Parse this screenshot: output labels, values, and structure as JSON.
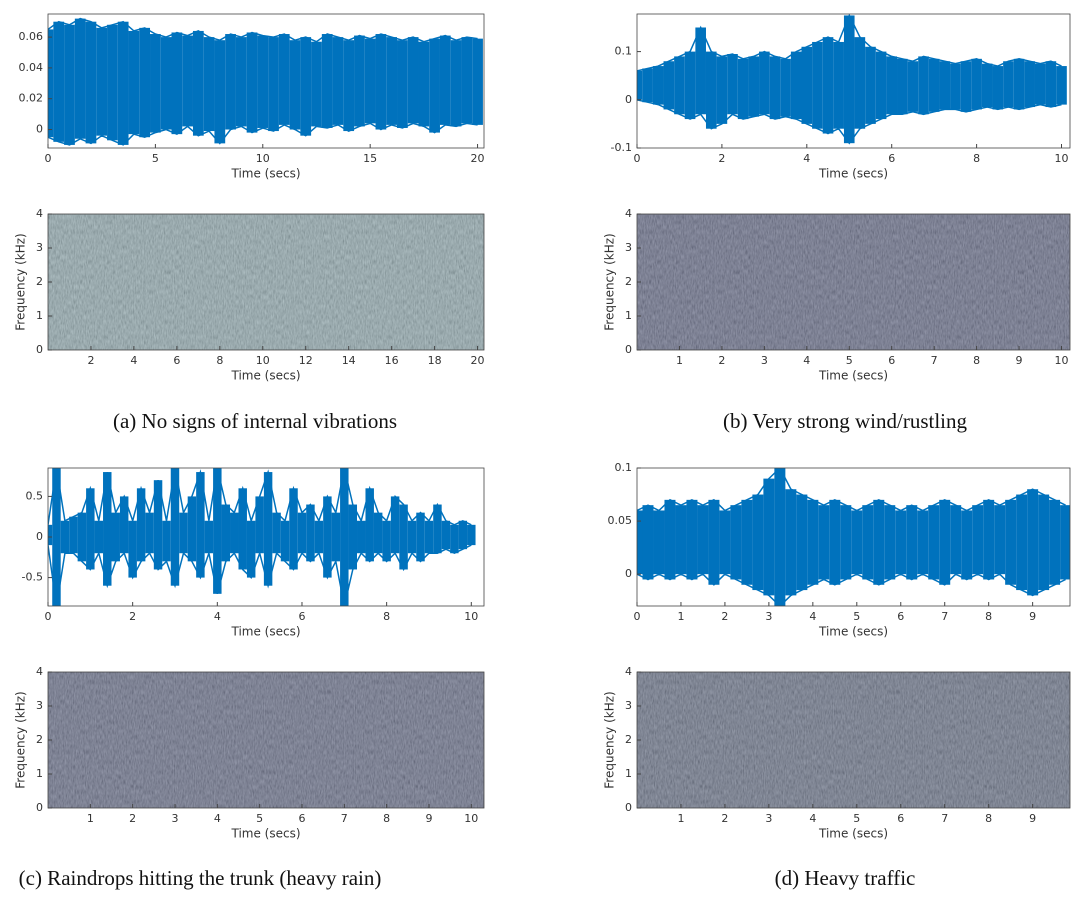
{
  "chart_data": [
    {
      "type": "waveform",
      "color": "#0072bd",
      "xlabel": "Time (secs)",
      "xlim": [
        0,
        20.3
      ],
      "ylim": [
        -0.012,
        0.075
      ],
      "xticks": [
        0,
        5,
        10,
        15,
        20
      ],
      "yticks": [
        0,
        0.02,
        0.04,
        0.06
      ],
      "x": [
        0,
        0.5,
        1,
        1.5,
        2,
        2.5,
        3,
        3.5,
        4,
        4.5,
        5,
        5.5,
        6,
        6.5,
        7,
        7.5,
        8,
        8.5,
        9,
        9.5,
        10,
        10.5,
        11,
        11.5,
        12,
        12.5,
        13,
        13.5,
        14,
        14.5,
        15,
        15.5,
        16,
        16.5,
        17,
        17.5,
        18,
        18.5,
        19,
        19.5,
        20
      ],
      "series": [
        {
          "values": [
            0.065,
            0.07,
            0.068,
            0.072,
            0.07,
            0.066,
            0.068,
            0.07,
            0.064,
            0.066,
            0.062,
            0.06,
            0.063,
            0.061,
            0.064,
            0.06,
            0.058,
            0.062,
            0.06,
            0.063,
            0.061,
            0.06,
            0.062,
            0.058,
            0.06,
            0.057,
            0.062,
            0.06,
            0.058,
            0.061,
            0.059,
            0.062,
            0.06,
            0.058,
            0.06,
            0.057,
            0.059,
            0.061,
            0.058,
            0.06,
            0.059
          ]
        },
        {
          "values": [
            -0.005,
            -0.008,
            -0.01,
            -0.006,
            -0.009,
            -0.004,
            -0.007,
            -0.01,
            -0.003,
            -0.005,
            -0.002,
            0,
            -0.003,
            0.002,
            -0.004,
            -0.001,
            -0.009,
            0,
            0.002,
            -0.002,
            0.001,
            -0.001,
            0.003,
            0,
            -0.004,
            0.002,
            0.001,
            0.003,
            -0.001,
            0.002,
            0.004,
            0,
            0.003,
            0.001,
            0.004,
            0.002,
            -0.002,
            0.003,
            0.002,
            0.004,
            0.003
          ]
        }
      ]
    },
    {
      "type": "spectrogram",
      "color": "#7f9ca3",
      "xlabel": "Time (secs)",
      "ylabel": "Frequency (kHz)",
      "xlim": [
        0,
        20.3
      ],
      "ylim": [
        0,
        4
      ],
      "xticks": [
        2,
        4,
        6,
        8,
        10,
        12,
        14,
        16,
        18,
        20
      ],
      "yticks": [
        0,
        1,
        2,
        3,
        4
      ]
    },
    {
      "type": "waveform",
      "color": "#0072bd",
      "xlabel": "Time (secs)",
      "xlim": [
        0,
        10.2
      ],
      "ylim": [
        -0.1,
        0.178
      ],
      "xticks": [
        0,
        2,
        4,
        6,
        8,
        10
      ],
      "yticks": [
        -0.1,
        0,
        0.1
      ],
      "x": [
        0,
        0.25,
        0.5,
        0.75,
        1,
        1.25,
        1.5,
        1.75,
        2,
        2.25,
        2.5,
        2.75,
        3,
        3.25,
        3.5,
        3.75,
        4,
        4.25,
        4.5,
        4.75,
        5,
        5.25,
        5.5,
        5.75,
        6,
        6.25,
        6.5,
        6.75,
        7,
        7.25,
        7.5,
        7.75,
        8,
        8.25,
        8.5,
        8.75,
        9,
        9.25,
        9.5,
        9.75,
        10
      ],
      "series": [
        {
          "values": [
            0.06,
            0.065,
            0.07,
            0.08,
            0.09,
            0.1,
            0.15,
            0.1,
            0.09,
            0.095,
            0.085,
            0.09,
            0.1,
            0.09,
            0.085,
            0.1,
            0.11,
            0.12,
            0.13,
            0.12,
            0.175,
            0.13,
            0.11,
            0.1,
            0.09,
            0.085,
            0.08,
            0.09,
            0.085,
            0.08,
            0.075,
            0.08,
            0.085,
            0.075,
            0.07,
            0.08,
            0.085,
            0.08,
            0.075,
            0.08,
            0.07
          ]
        },
        {
          "values": [
            0,
            -0.005,
            -0.01,
            -0.02,
            -0.03,
            -0.04,
            -0.03,
            -0.06,
            -0.05,
            -0.03,
            -0.04,
            -0.035,
            -0.03,
            -0.04,
            -0.035,
            -0.04,
            -0.05,
            -0.06,
            -0.07,
            -0.06,
            -0.09,
            -0.06,
            -0.05,
            -0.04,
            -0.03,
            -0.03,
            -0.025,
            -0.03,
            -0.025,
            -0.02,
            -0.02,
            -0.025,
            -0.02,
            -0.015,
            -0.02,
            -0.015,
            -0.02,
            -0.015,
            -0.01,
            -0.015,
            -0.01
          ]
        }
      ]
    },
    {
      "type": "spectrogram",
      "color": "#4b5274",
      "xlabel": "Time (secs)",
      "ylabel": "Frequency (kHz)",
      "xlim": [
        0,
        10.2
      ],
      "ylim": [
        0,
        4
      ],
      "xticks": [
        1,
        2,
        3,
        4,
        5,
        6,
        7,
        8,
        9,
        10
      ],
      "yticks": [
        0,
        1,
        2,
        3,
        4
      ]
    },
    {
      "type": "waveform",
      "color": "#0072bd",
      "xlabel": "Time (secs)",
      "xlim": [
        0,
        10.3
      ],
      "ylim": [
        -0.85,
        0.85
      ],
      "xticks": [
        0,
        2,
        4,
        6,
        8,
        10
      ],
      "yticks": [
        -0.5,
        0,
        0.5
      ],
      "x": [
        0,
        0.2,
        0.4,
        0.6,
        0.8,
        1,
        1.2,
        1.4,
        1.6,
        1.8,
        2,
        2.2,
        2.4,
        2.6,
        2.8,
        3,
        3.2,
        3.4,
        3.6,
        3.8,
        4,
        4.2,
        4.4,
        4.6,
        4.8,
        5,
        5.2,
        5.4,
        5.6,
        5.8,
        6,
        6.2,
        6.4,
        6.6,
        6.8,
        7,
        7.2,
        7.4,
        7.6,
        7.8,
        8,
        8.2,
        8.4,
        8.6,
        8.8,
        9,
        9.2,
        9.4,
        9.6,
        9.8,
        10
      ],
      "series": [
        {
          "values": [
            0.15,
            0.85,
            0.2,
            0.25,
            0.3,
            0.6,
            0.2,
            0.8,
            0.3,
            0.5,
            0.2,
            0.6,
            0.3,
            0.7,
            0.2,
            0.85,
            0.3,
            0.5,
            0.8,
            0.2,
            0.85,
            0.4,
            0.3,
            0.6,
            0.2,
            0.5,
            0.8,
            0.3,
            0.2,
            0.6,
            0.3,
            0.4,
            0.2,
            0.5,
            0.3,
            0.85,
            0.4,
            0.2,
            0.6,
            0.3,
            0.2,
            0.5,
            0.4,
            0.2,
            0.3,
            0.2,
            0.4,
            0.2,
            0.15,
            0.2,
            0.15
          ]
        },
        {
          "values": [
            -0.1,
            -0.85,
            -0.2,
            -0.2,
            -0.3,
            -0.4,
            -0.2,
            -0.6,
            -0.3,
            -0.2,
            -0.5,
            -0.3,
            -0.2,
            -0.4,
            -0.3,
            -0.6,
            -0.2,
            -0.3,
            -0.5,
            -0.2,
            -0.7,
            -0.3,
            -0.2,
            -0.4,
            -0.5,
            -0.2,
            -0.6,
            -0.2,
            -0.3,
            -0.4,
            -0.2,
            -0.3,
            -0.2,
            -0.5,
            -0.3,
            -0.85,
            -0.4,
            -0.2,
            -0.3,
            -0.2,
            -0.3,
            -0.2,
            -0.4,
            -0.2,
            -0.3,
            -0.2,
            -0.2,
            -0.15,
            -0.2,
            -0.15,
            -0.1
          ]
        }
      ]
    },
    {
      "type": "spectrogram",
      "color": "#4d5575",
      "xlabel": "Time (secs)",
      "ylabel": "Frequency (kHz)",
      "xlim": [
        0,
        10.3
      ],
      "ylim": [
        0,
        4
      ],
      "xticks": [
        1,
        2,
        3,
        4,
        5,
        6,
        7,
        8,
        9,
        10
      ],
      "yticks": [
        0,
        1,
        2,
        3,
        4
      ]
    },
    {
      "type": "waveform",
      "color": "#0072bd",
      "xlabel": "Time (secs)",
      "xlim": [
        0,
        9.85
      ],
      "ylim": [
        -0.03,
        0.1
      ],
      "xticks": [
        0,
        1,
        2,
        3,
        4,
        5,
        6,
        7,
        8,
        9
      ],
      "yticks": [
        0,
        0.05,
        0.1
      ],
      "x": [
        0,
        0.25,
        0.5,
        0.75,
        1,
        1.25,
        1.5,
        1.75,
        2,
        2.25,
        2.5,
        2.75,
        3,
        3.25,
        3.5,
        3.75,
        4,
        4.25,
        4.5,
        4.75,
        5,
        5.25,
        5.5,
        5.75,
        6,
        6.25,
        6.5,
        6.75,
        7,
        7.25,
        7.5,
        7.75,
        8,
        8.25,
        8.5,
        8.75,
        9,
        9.25,
        9.5,
        9.75
      ],
      "series": [
        {
          "values": [
            0.06,
            0.065,
            0.06,
            0.07,
            0.065,
            0.07,
            0.065,
            0.07,
            0.06,
            0.065,
            0.07,
            0.075,
            0.09,
            0.1,
            0.08,
            0.075,
            0.07,
            0.065,
            0.07,
            0.065,
            0.06,
            0.065,
            0.07,
            0.065,
            0.06,
            0.065,
            0.06,
            0.065,
            0.07,
            0.065,
            0.06,
            0.065,
            0.07,
            0.065,
            0.07,
            0.075,
            0.08,
            0.075,
            0.07,
            0.065
          ]
        },
        {
          "values": [
            0,
            -0.005,
            0,
            -0.005,
            0,
            -0.005,
            0,
            -0.01,
            0,
            -0.005,
            -0.01,
            -0.015,
            -0.02,
            -0.03,
            -0.02,
            -0.015,
            -0.01,
            -0.005,
            -0.01,
            -0.005,
            0,
            -0.005,
            -0.01,
            -0.005,
            0,
            -0.005,
            0,
            -0.005,
            -0.01,
            0,
            -0.005,
            0,
            -0.005,
            0,
            -0.01,
            -0.015,
            -0.02,
            -0.015,
            -0.01,
            -0.005
          ]
        }
      ]
    },
    {
      "type": "spectrogram",
      "color": "#4f5a74",
      "xlabel": "Time (secs)",
      "ylabel": "Frequency (kHz)",
      "xlim": [
        0,
        9.85
      ],
      "ylim": [
        0,
        4
      ],
      "xticks": [
        1,
        2,
        3,
        4,
        5,
        6,
        7,
        8,
        9
      ],
      "yticks": [
        0,
        1,
        2,
        3,
        4
      ]
    }
  ],
  "captions": [
    "(a) No signs of internal vibrations",
    "(b) Very strong wind/rustling",
    "(c) Raindrops hitting the trunk (heavy rain)",
    "(d) Heavy traffic"
  ]
}
